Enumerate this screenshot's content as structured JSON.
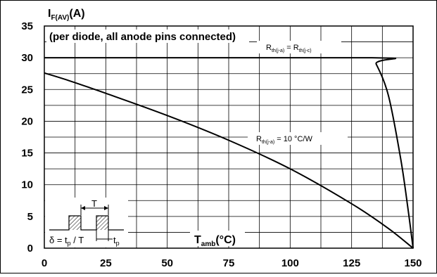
{
  "chart_data": {
    "type": "line",
    "title": "",
    "ylabel": {
      "main": "I",
      "sub": "F(AV)",
      "unit": "(A)"
    },
    "xlabel": {
      "main": "T",
      "sub": "amb",
      "unit": "(°C)"
    },
    "annotation": "(per diode, all anode pins connected)",
    "xlim": [
      0,
      150
    ],
    "ylim": [
      0,
      35
    ],
    "x_ticks": [
      "0",
      "25",
      "50",
      "75",
      "100",
      "125",
      "150"
    ],
    "y_ticks": [
      "0",
      "5",
      "10",
      "15",
      "20",
      "25",
      "30",
      "35"
    ],
    "grid": true,
    "series": [
      {
        "name": "Rth(j-a) = Rth(j-c)",
        "label_parts": {
          "a": "R",
          "a_sub": "th(j-a)",
          "eq": " = ",
          "b": "R",
          "b_sub": "th(j-c)"
        },
        "x": [
          0,
          132.5,
          135,
          140,
          145,
          148,
          150
        ],
        "y": [
          30,
          30,
          29,
          24,
          14,
          6,
          0
        ]
      },
      {
        "name": "Rth(j-a) = 10 °C/W",
        "label_parts": {
          "a": "R",
          "a_sub": "th(j-a)",
          "rest": " = 10 °C/W"
        },
        "x": [
          0,
          10,
          25,
          50,
          75,
          100,
          125,
          140,
          150
        ],
        "y": [
          27.6,
          26.4,
          24.4,
          20.9,
          17.0,
          12.5,
          7.0,
          3.1,
          0
        ]
      }
    ],
    "inset": {
      "period_label": "T",
      "formula": {
        "d": "δ = t",
        "d_sub": "p",
        "d_rest": " / T",
        "tp": "t",
        "tp_sub": "p"
      }
    }
  }
}
